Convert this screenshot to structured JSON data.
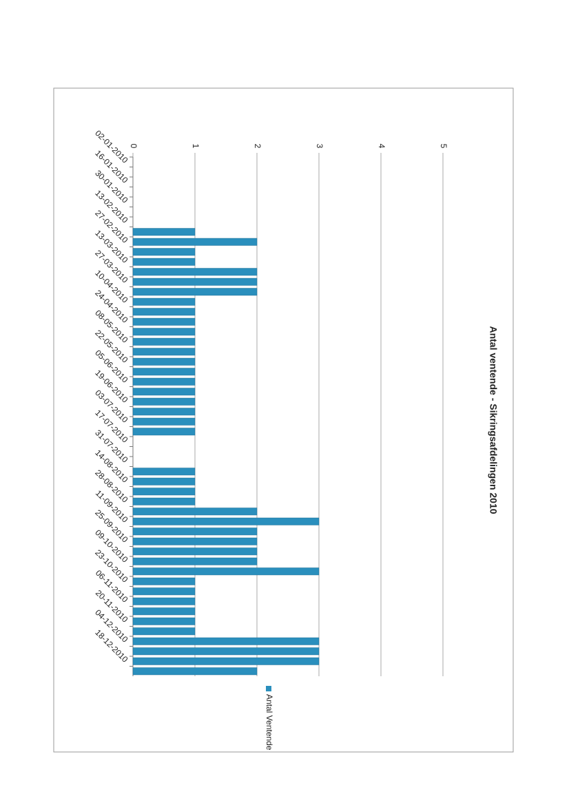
{
  "chart_data": {
    "type": "bar",
    "title": "Antal ventende - Sikringsafdelingen 2010",
    "categories": [
      "02-01-2010",
      null,
      "16-01-2010",
      null,
      "30-01-2010",
      null,
      "13-02-2010",
      null,
      "27-02-2010",
      null,
      "13-03-2010",
      null,
      "27-03-2010",
      null,
      "10-04-2010",
      null,
      "24-04-2010",
      null,
      "08-05-2010",
      null,
      "22-05-2010",
      null,
      "05-06-2010",
      null,
      "19-06-2010",
      null,
      "03-07-2010",
      null,
      "17-07-2010",
      null,
      "31-07-2010",
      null,
      "14-08-2010",
      null,
      "28-08-2010",
      null,
      "11-09-2010",
      null,
      "25-09-2010",
      null,
      "09-10-2010",
      null,
      "23-10-2010",
      null,
      "06-11-2010",
      null,
      "20-11-2010",
      null,
      "04-12-2010",
      null,
      "18-12-2010",
      null
    ],
    "series": [
      {
        "name": "Antal Ventende",
        "color": "#2a8fbd",
        "values": [
          0,
          0,
          0,
          0,
          0,
          0,
          0,
          1,
          2,
          1,
          1,
          2,
          2,
          2,
          1,
          1,
          1,
          1,
          1,
          1,
          1,
          1,
          1,
          1,
          1,
          1,
          1,
          1,
          0,
          0,
          0,
          1,
          1,
          1,
          1,
          2,
          3,
          2,
          2,
          2,
          2,
          3,
          1,
          1,
          1,
          1,
          1,
          1,
          3,
          3,
          3,
          2
        ]
      }
    ],
    "ylim": [
      0,
      5
    ],
    "yticks": [
      0,
      1,
      2,
      3,
      4,
      5
    ],
    "grid": true,
    "legend": "right"
  }
}
